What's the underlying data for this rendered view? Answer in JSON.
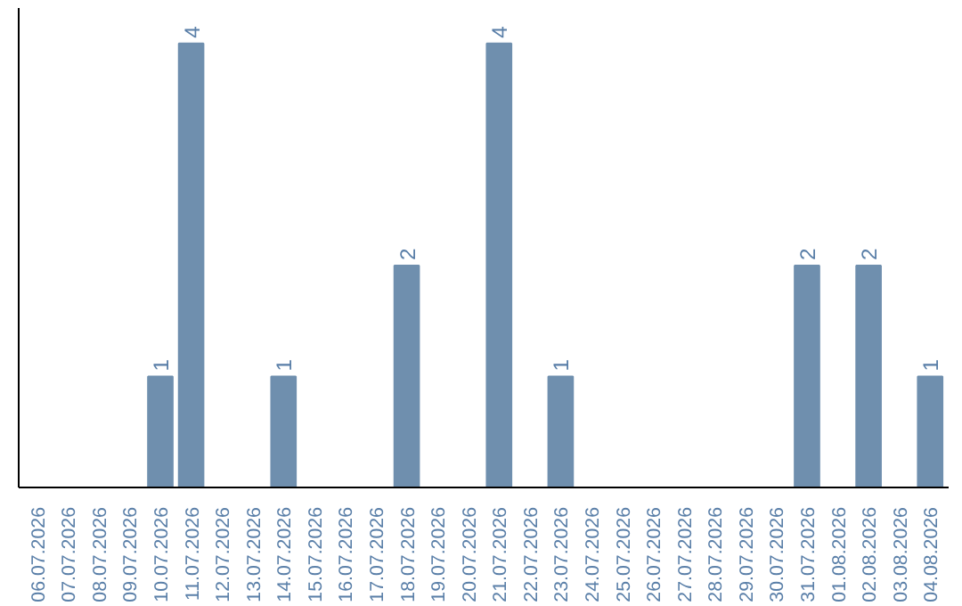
{
  "chart_data": {
    "type": "bar",
    "categories": [
      "06.07.2026",
      "07.07.2026",
      "08.07.2026",
      "09.07.2026",
      "10.07.2026",
      "11.07.2026",
      "12.07.2026",
      "13.07.2026",
      "14.07.2026",
      "15.07.2026",
      "16.07.2026",
      "17.07.2026",
      "18.07.2026",
      "19.07.2026",
      "20.07.2026",
      "21.07.2026",
      "22.07.2026",
      "23.07.2026",
      "24.07.2026",
      "25.07.2026",
      "26.07.2026",
      "27.07.2026",
      "28.07.2026",
      "29.07.2026",
      "30.07.2026",
      "31.07.2026",
      "01.08.2026",
      "02.08.2026",
      "03.08.2026",
      "04.08.2026"
    ],
    "values": [
      0,
      0,
      0,
      0,
      1,
      4,
      0,
      0,
      1,
      0,
      0,
      0,
      2,
      0,
      0,
      4,
      0,
      1,
      0,
      0,
      0,
      0,
      0,
      0,
      0,
      2,
      0,
      2,
      0,
      1
    ],
    "value_labels": [
      null,
      null,
      null,
      null,
      "1",
      "4",
      null,
      null,
      "1",
      null,
      null,
      null,
      "2",
      null,
      null,
      "4",
      null,
      "1",
      null,
      null,
      null,
      null,
      null,
      null,
      null,
      "2",
      null,
      "2",
      null,
      "1"
    ],
    "color": "#6f8fae"
  }
}
